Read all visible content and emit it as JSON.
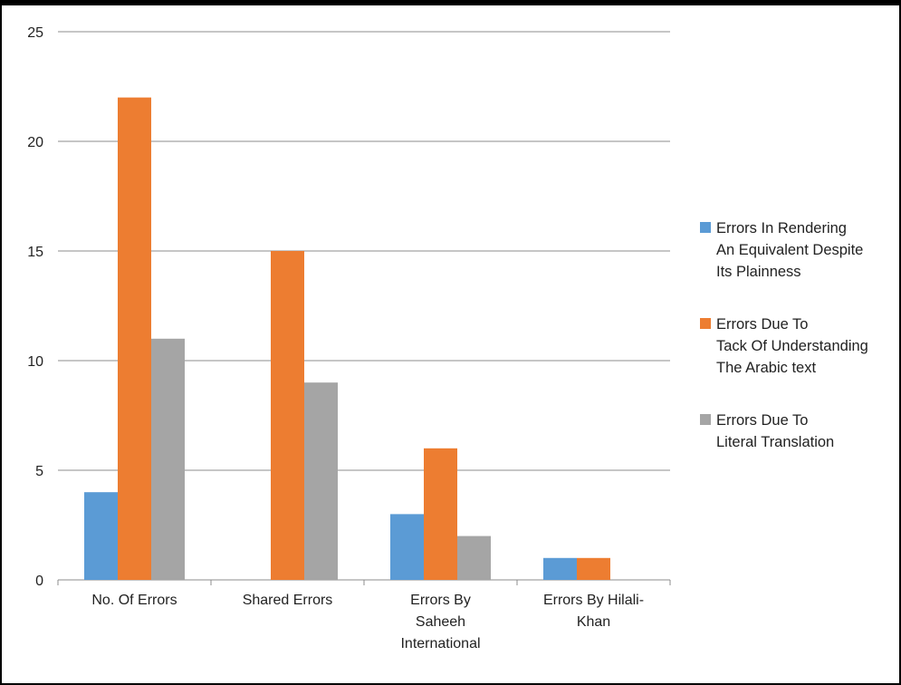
{
  "chart_data": {
    "type": "bar",
    "categories": [
      [
        "No. Of Errors"
      ],
      [
        "Shared Errors"
      ],
      [
        "Errors By",
        "Saheeh",
        "International"
      ],
      [
        "Errors By Hilali-",
        "Khan"
      ]
    ],
    "series": [
      {
        "name": [
          "Errors In Rendering",
          "An Equivalent Despite",
          "Its Plainness"
        ],
        "color": "#5B9BD5",
        "values": [
          4,
          0,
          3,
          1
        ]
      },
      {
        "name": [
          "Errors Due To",
          "Tack Of Understanding",
          "The Arabic text"
        ],
        "color": "#ED7D31",
        "values": [
          22,
          15,
          6,
          1
        ]
      },
      {
        "name": [
          "Errors Due To",
          "Literal Translation"
        ],
        "color": "#A5A5A5",
        "values": [
          11,
          9,
          2,
          0
        ]
      }
    ],
    "ylim": [
      0,
      25
    ],
    "yticks": [
      0,
      5,
      10,
      15,
      20,
      25
    ],
    "grid": true,
    "legend_position": "right",
    "title": "",
    "xlabel": "",
    "ylabel": ""
  }
}
